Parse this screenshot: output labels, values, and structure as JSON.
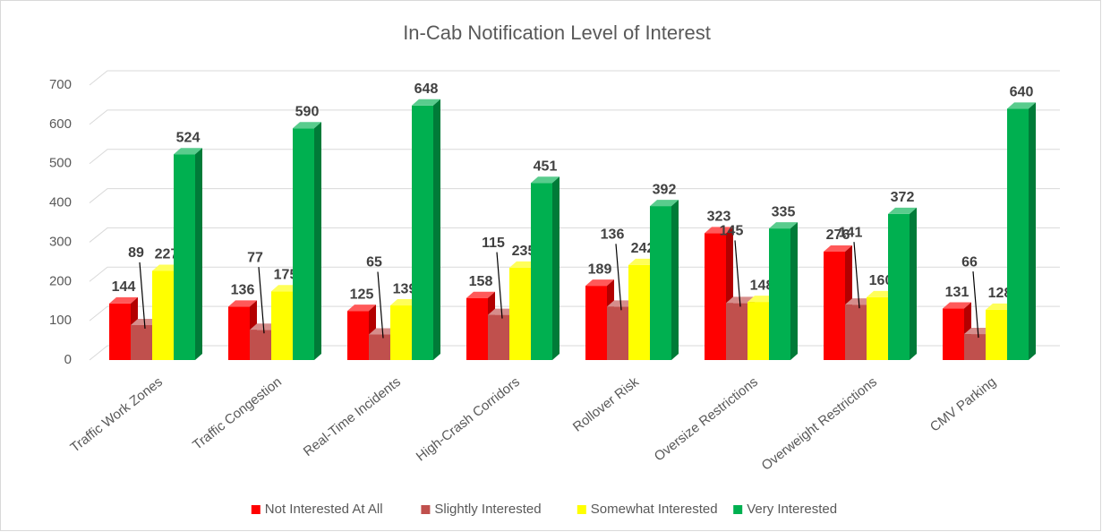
{
  "chart_data": {
    "type": "bar3d",
    "title": "In-Cab Notification Level of Interest",
    "categories": [
      "Traffic Work Zones",
      "Traffic Congestion",
      "Real-Time Incidents",
      "High-Crash Corridors",
      "Rollover Risk",
      "Oversize Restrictions",
      "Overweight Restrictions",
      "CMV Parking"
    ],
    "series": [
      {
        "name": "Not Interested At All",
        "color": "#ff0000",
        "values": [
          144,
          136,
          125,
          158,
          189,
          323,
          276,
          131
        ]
      },
      {
        "name": "Slightly Interested",
        "color": "#c0504d",
        "values": [
          89,
          77,
          65,
          115,
          136,
          145,
          141,
          66
        ]
      },
      {
        "name": "Somewhat Interested",
        "color": "#ffff00",
        "values": [
          227,
          175,
          139,
          235,
          242,
          148,
          160,
          128
        ]
      },
      {
        "name": "Very Interested",
        "color": "#00b050",
        "values": [
          524,
          590,
          648,
          451,
          392,
          335,
          372,
          640
        ]
      }
    ],
    "ylim": [
      0,
      700
    ],
    "yticks": [
      0,
      100,
      200,
      300,
      400,
      500,
      600,
      700
    ],
    "grid": true,
    "legend": "bottom"
  }
}
